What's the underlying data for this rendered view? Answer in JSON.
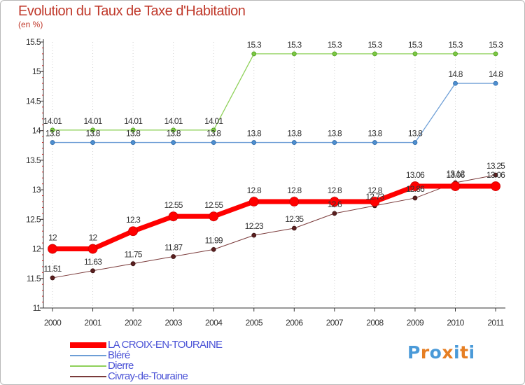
{
  "chart_data": {
    "type": "line",
    "title": "Evolution du Taux de Taxe d'Habitation",
    "unit_label": "(en %)",
    "categories": [
      "2000",
      "2001",
      "2002",
      "2003",
      "2004",
      "2005",
      "2006",
      "2007",
      "2008",
      "2009",
      "2010",
      "2011"
    ],
    "ylim": [
      11,
      15.5
    ],
    "y_ticks": [
      "11",
      "11.5",
      "12",
      "12.5",
      "13",
      "13.5",
      "14",
      "14.5",
      "15",
      "15.5"
    ],
    "y_tick_values": [
      11,
      11.5,
      12,
      12.5,
      13,
      13.5,
      14,
      14.5,
      15,
      15.5
    ],
    "grid": "vertical dotted",
    "legend_position": "bottom-left",
    "series": [
      {
        "name": "LA CROIX-EN-TOURAINE",
        "color": "#ff0000",
        "values": [
          12,
          12,
          12.3,
          12.55,
          12.55,
          12.8,
          12.8,
          12.8,
          12.8,
          13.06,
          13.06,
          13.06
        ],
        "labels": [
          "12",
          "12",
          "12.3",
          "12.55",
          "12.55",
          "12.8",
          "12.8",
          "12.8",
          "12.8",
          "13.06",
          "13.06",
          "13.06"
        ]
      },
      {
        "name": "Bléré",
        "color": "#6d9ed6",
        "values": [
          13.8,
          13.8,
          13.8,
          13.8,
          13.8,
          13.8,
          13.8,
          13.8,
          13.8,
          13.8,
          14.8,
          14.8
        ],
        "labels": [
          "13.8",
          "13.8",
          "13.8",
          "13.8",
          "13.8",
          "13.8",
          "13.8",
          "13.8",
          "13.8",
          "13.8",
          "14.8",
          "14.8"
        ]
      },
      {
        "name": "Dierre",
        "color": "#8fd15a",
        "values": [
          14.01,
          14.01,
          14.01,
          14.01,
          14.01,
          15.3,
          15.3,
          15.3,
          15.3,
          15.3,
          15.3,
          15.3
        ],
        "labels": [
          "14.01",
          "14.01",
          "14.01",
          "14.01",
          "14.01",
          "15.3",
          "15.3",
          "15.3",
          "15.3",
          "15.3",
          "15.3",
          "15.3"
        ]
      },
      {
        "name": "Civray-de-Touraine",
        "color": "#7a3a3a",
        "values": [
          11.51,
          11.63,
          11.75,
          11.87,
          11.99,
          12.23,
          12.35,
          12.6,
          12.73,
          12.86,
          13.12,
          13.25
        ],
        "labels": [
          "11.51",
          "11.63",
          "11.75",
          "11.87",
          "11.99",
          "12.23",
          "12.35",
          "12.6",
          "12.73",
          "12.86",
          "13.12",
          "13.25"
        ]
      }
    ]
  },
  "logo": {
    "text": "Proxiti",
    "letter_colors": [
      "#4a9ad8",
      "#e67e22",
      "#4a9ad8",
      "#e67e22",
      "#4a9ad8",
      "#e67e22",
      "#4a9ad8"
    ]
  }
}
